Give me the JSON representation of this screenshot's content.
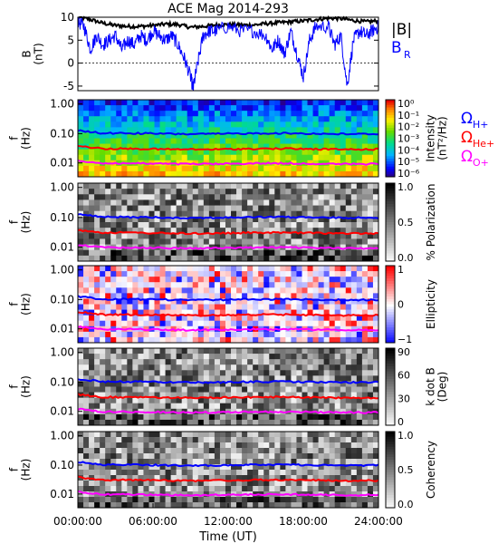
{
  "title": "ACE Mag 2014-293",
  "xlabel": "Time (UT)",
  "x_ticks": [
    "00:00:00",
    "06:00:00",
    "12:00:00",
    "18:00:00",
    "24:00:00"
  ],
  "colors": {
    "black": "#000000",
    "blue": "#0000ff",
    "red": "#ff0000",
    "magenta": "#ff00ff"
  },
  "chart_data": [
    {
      "type": "line",
      "ylabel": "B\n(nT)",
      "ylim": [
        -6,
        10
      ],
      "y_ticks": [
        "10",
        "5",
        "0",
        "-5"
      ],
      "legend": [
        {
          "label": "|B|",
          "color": "#000000"
        },
        {
          "label": "B",
          "sub": "R",
          "color": "#0000ff"
        }
      ],
      "series": [
        {
          "name": "|B|",
          "color": "#000000",
          "x": [
            0,
            1,
            2,
            3,
            4,
            5,
            6,
            7,
            8,
            9,
            10,
            11,
            12,
            13,
            14,
            15,
            16,
            17,
            18,
            19,
            20,
            21,
            22,
            23,
            24
          ],
          "values": [
            10,
            9.5,
            8.7,
            8.2,
            8.0,
            8.0,
            8.2,
            8.5,
            8.4,
            7.8,
            8.0,
            8.3,
            8.4,
            8.3,
            8.3,
            8.6,
            8.8,
            9.0,
            9.2,
            9.5,
            9.8,
            9.7,
            9.3,
            9.0,
            9.2
          ]
        },
        {
          "name": "B_R",
          "color": "#0000ff",
          "x": [
            0,
            0.5,
            1,
            1.5,
            2,
            2.5,
            3,
            3.5,
            4,
            4.5,
            5,
            5.5,
            6,
            6.5,
            7,
            7.5,
            8,
            8.5,
            9,
            9.2,
            9.5,
            10,
            10.5,
            11,
            12,
            13,
            14,
            15,
            15.5,
            16,
            16.5,
            17,
            17.5,
            18,
            18.5,
            19,
            20,
            20.5,
            21,
            21.5,
            22,
            22.5,
            23,
            23.5,
            24
          ],
          "values": [
            9,
            8,
            3,
            6,
            4,
            5,
            6,
            3,
            5,
            4,
            6,
            5,
            7,
            6,
            5,
            6,
            4,
            1,
            -3,
            -5.5,
            -1,
            6,
            7,
            7,
            8,
            7,
            7,
            6,
            3,
            5,
            2,
            7,
            2,
            -3,
            5,
            8,
            8,
            4,
            6,
            -5,
            5,
            7,
            6,
            7,
            8
          ]
        }
      ]
    },
    {
      "type": "heatmap",
      "ylabel": "f\n(Hz)",
      "y_ticks": [
        "1.00",
        "0.10",
        "0.01"
      ],
      "colorbar": {
        "label": "Intensity\n(nT²/Hz)",
        "ticks": [
          "10⁰",
          "10⁻¹",
          "10⁻²",
          "10⁻³",
          "10⁻⁴",
          "10⁻⁵",
          "10⁻⁶"
        ],
        "scale": "rainbow"
      },
      "gyro_labels": [
        {
          "label": "Ω",
          "sub": "H+",
          "color": "#0000ff"
        },
        {
          "label": "Ω",
          "sub": "He+",
          "color": "#ff0000"
        },
        {
          "label": "Ω",
          "sub": "O+",
          "color": "#ff00ff"
        }
      ]
    },
    {
      "type": "heatmap",
      "ylabel": "f\n(Hz)",
      "y_ticks": [
        "1.00",
        "0.10",
        "0.01"
      ],
      "colorbar": {
        "label": "% Polarization",
        "ticks": [
          "1.0",
          "0.5",
          "0.0"
        ],
        "scale": "gray"
      }
    },
    {
      "type": "heatmap",
      "ylabel": "f\n(Hz)",
      "y_ticks": [
        "1.00",
        "0.10",
        "0.01"
      ],
      "colorbar": {
        "label": "Ellipticity",
        "ticks": [
          "1",
          "0",
          "−1"
        ],
        "scale": "bwr"
      }
    },
    {
      "type": "heatmap",
      "ylabel": "f\n(Hz)",
      "y_ticks": [
        "1.00",
        "0.10",
        "0.01"
      ],
      "colorbar": {
        "label": "k dot B\n(Deg)",
        "ticks": [
          "90",
          "60",
          "30",
          "0"
        ],
        "scale": "gray"
      }
    },
    {
      "type": "heatmap",
      "ylabel": "f\n(Hz)",
      "y_ticks": [
        "1.00",
        "0.10",
        "0.01"
      ],
      "colorbar": {
        "label": "Coherency",
        "ticks": [
          "1.0",
          "0.5",
          "0.0"
        ],
        "scale": "gray"
      }
    }
  ]
}
